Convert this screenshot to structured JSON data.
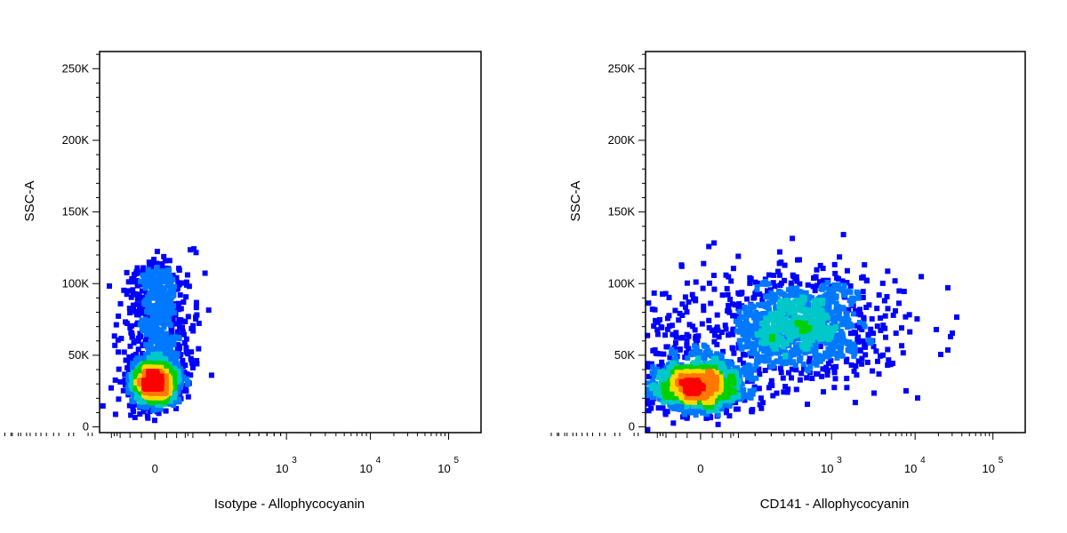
{
  "chart_data": [
    {
      "type": "scatter",
      "subtype": "density-colored flow cytometry dot plot",
      "xlabel": "Isotype - Allophycocyanin",
      "ylabel": "SSC-A",
      "x_scale": "biexponential",
      "x_ticks": [
        {
          "label": "0"
        },
        {
          "label": "10",
          "sup": "3"
        },
        {
          "label": "10",
          "sup": "4"
        },
        {
          "label": "10",
          "sup": "5"
        }
      ],
      "y_ticks": [
        "0",
        "50K",
        "100K",
        "150K",
        "200K",
        "250K"
      ],
      "ylim": [
        0,
        262144
      ],
      "grid": false,
      "populations": [
        {
          "name": "",
          "x_center": 0,
          "y_center": 30000,
          "share": 0.62
        },
        {
          "name": "",
          "x_center": 0,
          "y_center": 75000,
          "share": 0.38
        }
      ]
    },
    {
      "type": "scatter",
      "subtype": "density-colored flow cytometry dot plot",
      "xlabel": "CD141 - Allophycocyanin",
      "ylabel": "SSC-A",
      "x_scale": "biexponential",
      "x_ticks": [
        {
          "label": "0"
        },
        {
          "label": "10",
          "sup": "3"
        },
        {
          "label": "10",
          "sup": "4"
        },
        {
          "label": "10",
          "sup": "5"
        }
      ],
      "y_ticks": [
        "0",
        "50K",
        "100K",
        "150K",
        "200K",
        "250K"
      ],
      "ylim": [
        0,
        262144
      ],
      "grid": false,
      "populations": [
        {
          "name": "",
          "x_center": 0,
          "y_center": 30000,
          "share": 0.6
        },
        {
          "name": "",
          "x_center": 900,
          "y_center": 75000,
          "share": 0.4
        }
      ]
    }
  ],
  "colors": {
    "density_scale": [
      "#0000ff",
      "#0078ff",
      "#00c8c8",
      "#00d000",
      "#ffd800",
      "#ff7800",
      "#ff0000"
    ],
    "axis": "#000000",
    "background": "#ffffff"
  }
}
